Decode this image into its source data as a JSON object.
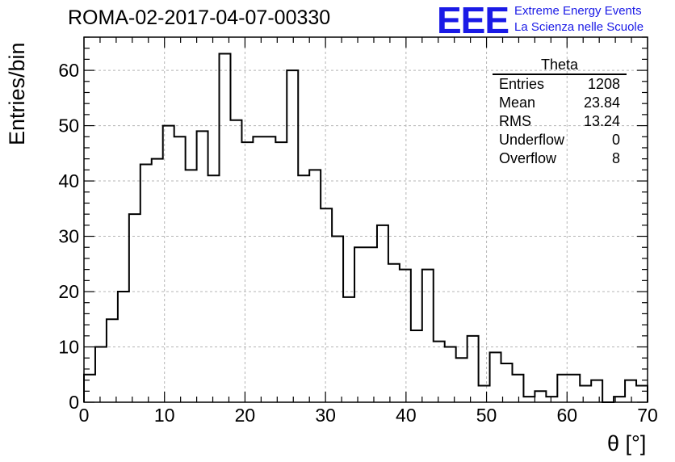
{
  "title": "ROMA-02-2017-04-07-00330",
  "logo": {
    "mark": "EEE",
    "line1": "Extreme Energy Events",
    "line2": "La Scienza nelle Scuole",
    "color": "#1a1ae6"
  },
  "stats": {
    "title": "Theta",
    "rows": [
      {
        "label": "Entries",
        "value": "1208"
      },
      {
        "label": "Mean",
        "value": "23.84"
      },
      {
        "label": "RMS",
        "value": "13.24"
      },
      {
        "label": "Underflow",
        "value": "0"
      },
      {
        "label": "Overflow",
        "value": "8"
      }
    ]
  },
  "chart_data": {
    "type": "bar",
    "style": "step histogram",
    "xlabel": "θ [°]",
    "ylabel": "Entries/bin",
    "xlim": [
      0,
      70
    ],
    "ylim": [
      0,
      66
    ],
    "bin_width": 1.4,
    "xticks": [
      0,
      10,
      20,
      30,
      40,
      50,
      60,
      70
    ],
    "yticks": [
      0,
      10,
      20,
      30,
      40,
      50,
      60
    ],
    "grid": true,
    "values": [
      5,
      10,
      15,
      20,
      34,
      43,
      44,
      50,
      48,
      42,
      49,
      41,
      63,
      51,
      47,
      48,
      48,
      47,
      60,
      41,
      42,
      35,
      30,
      19,
      28,
      28,
      32,
      25,
      24,
      13,
      24,
      11,
      10,
      8,
      12,
      3,
      9,
      7,
      5,
      1,
      2,
      1,
      5,
      5,
      3,
      4,
      0,
      1,
      4,
      3
    ]
  }
}
